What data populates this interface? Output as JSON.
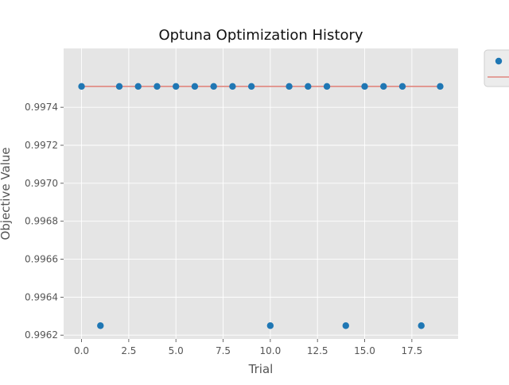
{
  "chart_data": {
    "type": "scatter",
    "title": "Optuna Optimization History",
    "xlabel": "Trial",
    "ylabel": "Objective Value",
    "xlim": [
      -0.95,
      19.95
    ],
    "ylim": [
      0.99618,
      0.99771
    ],
    "x_ticks": [
      0,
      2.5,
      5,
      7.5,
      10,
      12.5,
      15,
      17.5
    ],
    "x_tick_labels": [
      "0.0",
      "2.5",
      "5.0",
      "7.5",
      "10.0",
      "12.5",
      "15.0",
      "17.5"
    ],
    "y_ticks": [
      0.9962,
      0.9964,
      0.9966,
      0.9968,
      0.997,
      0.9972,
      0.9974
    ],
    "y_tick_labels": [
      "0.9962",
      "0.9964",
      "0.9966",
      "0.9968",
      "0.9970",
      "0.9972",
      "0.9974"
    ],
    "grid": true,
    "legend": "upper-right, partially cut off",
    "series": [
      {
        "kind": "scatter",
        "color": "#1f77b4",
        "x": [
          0,
          1,
          2,
          3,
          4,
          5,
          6,
          7,
          8,
          9,
          10,
          11,
          12,
          13,
          14,
          15,
          16,
          17,
          18,
          19
        ],
        "y": [
          0.99751,
          0.99625,
          0.99751,
          0.99751,
          0.99751,
          0.99751,
          0.99751,
          0.99751,
          0.99751,
          0.99751,
          0.99625,
          0.99751,
          0.99751,
          0.99751,
          0.99625,
          0.99751,
          0.99751,
          0.99751,
          0.99625,
          0.99751
        ]
      },
      {
        "kind": "line",
        "color": "#e0867f",
        "x": [
          0,
          1,
          2,
          3,
          4,
          5,
          6,
          7,
          8,
          9,
          10,
          11,
          12,
          13,
          14,
          15,
          16,
          17,
          18,
          19
        ],
        "y": [
          0.99751,
          0.99751,
          0.99751,
          0.99751,
          0.99751,
          0.99751,
          0.99751,
          0.99751,
          0.99751,
          0.99751,
          0.99751,
          0.99751,
          0.99751,
          0.99751,
          0.99751,
          0.99751,
          0.99751,
          0.99751,
          0.99751,
          0.99751
        ]
      }
    ],
    "colors": {
      "plot_background": "#e5e5e5",
      "grid": "#ffffff",
      "text": "#555555",
      "title": "#111111"
    }
  }
}
